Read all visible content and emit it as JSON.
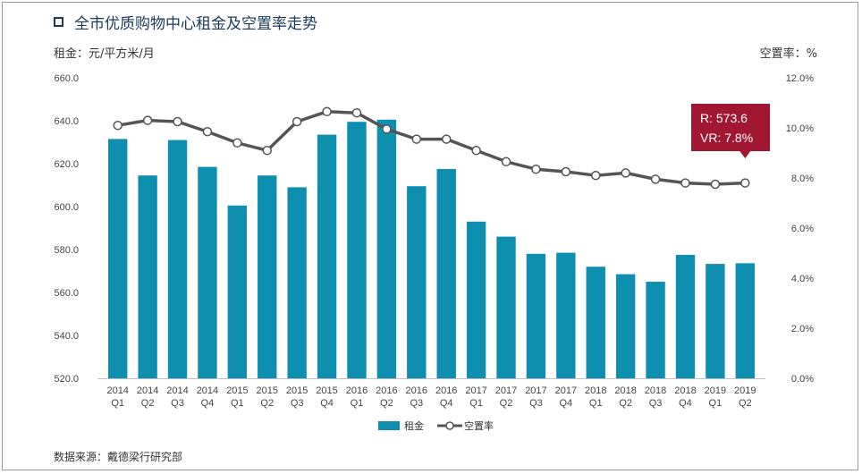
{
  "header": {
    "title": "全市优质购物中心租金及空置率走势",
    "ylabel_left": "租金：元/平方米/月",
    "ylabel_right": "空置率：%",
    "source": "数据来源：戴德梁行研究部"
  },
  "callout": {
    "line1": "R: 573.6",
    "line2": "VR: 7.8%"
  },
  "chart_data": {
    "type": "bar",
    "categories": [
      "2014 Q1",
      "2014 Q2",
      "2014 Q3",
      "2014 Q4",
      "2015 Q1",
      "2015 Q2",
      "2015 Q3",
      "2015 Q4",
      "2016 Q1",
      "2016 Q2",
      "2016 Q3",
      "2016 Q4",
      "2017 Q1",
      "2017 Q2",
      "2017 Q3",
      "2017 Q4",
      "2018 Q1",
      "2018 Q2",
      "2018 Q3",
      "2018 Q4",
      "2019 Q1",
      "2019 Q2"
    ],
    "category_lines": [
      [
        "2014",
        "Q1"
      ],
      [
        "2014",
        "Q2"
      ],
      [
        "2014",
        "Q3"
      ],
      [
        "2014",
        "Q4"
      ],
      [
        "2015",
        "Q1"
      ],
      [
        "2015",
        "Q2"
      ],
      [
        "2015",
        "Q3"
      ],
      [
        "2015",
        "Q4"
      ],
      [
        "2016",
        "Q1"
      ],
      [
        "2016",
        "Q2"
      ],
      [
        "2016",
        "Q3"
      ],
      [
        "2016",
        "Q4"
      ],
      [
        "2017",
        "Q1"
      ],
      [
        "2017",
        "Q2"
      ],
      [
        "2017",
        "Q3"
      ],
      [
        "2017",
        "Q4"
      ],
      [
        "2018",
        "Q1"
      ],
      [
        "2018",
        "Q2"
      ],
      [
        "2018",
        "Q3"
      ],
      [
        "2018",
        "Q4"
      ],
      [
        "2019",
        "Q1"
      ],
      [
        "2019",
        "Q2"
      ]
    ],
    "series": [
      {
        "name": "租金",
        "type": "bar",
        "axis": "left",
        "color": "#0e8fb0",
        "values": [
          631.5,
          614.5,
          631,
          618.5,
          600.5,
          614.5,
          609,
          633.5,
          639.5,
          640.5,
          609.5,
          617.5,
          593,
          586,
          578,
          578.5,
          572,
          568.5,
          565,
          577.5,
          573.3,
          573.6
        ]
      },
      {
        "name": "空置率",
        "type": "line",
        "axis": "right",
        "color": "#555555",
        "values": [
          10.1,
          10.3,
          10.25,
          9.85,
          9.4,
          9.1,
          10.25,
          10.65,
          10.6,
          9.95,
          9.55,
          9.55,
          9.1,
          8.65,
          8.35,
          8.25,
          8.1,
          8.2,
          7.95,
          7.8,
          7.75,
          7.8
        ]
      }
    ],
    "ylim_left": [
      520,
      660
    ],
    "yticks_left": [
      "520.0",
      "540.0",
      "560.0",
      "580.0",
      "600.0",
      "620.0",
      "640.0",
      "660.0"
    ],
    "ylim_right": [
      0,
      12
    ],
    "yticks_right": [
      "0.0%",
      "2.0%",
      "4.0%",
      "6.0%",
      "8.0%",
      "10.0%",
      "12.0%"
    ],
    "grid": false,
    "legend_position": "bottom"
  }
}
